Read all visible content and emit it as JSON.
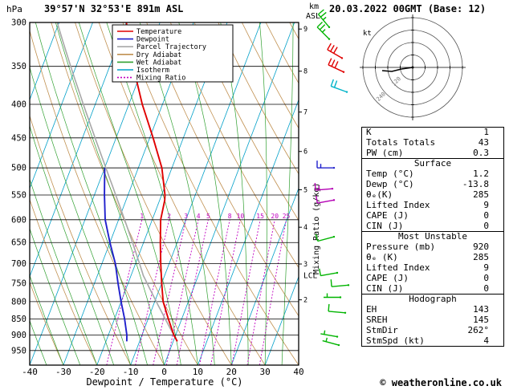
{
  "header": {
    "pressure_unit": "hPa",
    "station": "39°57'N 32°53'E 891m ASL",
    "altitude_unit_top": "km",
    "altitude_unit_bottom": "ASL",
    "datetime": "20.03.2022 00GMT (Base: 12)"
  },
  "legend": [
    {
      "label": "Temperature",
      "color": "#e00000",
      "style": "solid"
    },
    {
      "label": "Dewpoint",
      "color": "#2020cc",
      "style": "solid"
    },
    {
      "label": "Parcel Trajectory",
      "color": "#a8a8a8",
      "style": "solid"
    },
    {
      "label": "Dry Adiabat",
      "color": "#c09050",
      "style": "solid"
    },
    {
      "label": "Wet Adiabat",
      "color": "#30a030",
      "style": "solid"
    },
    {
      "label": "Isotherm",
      "color": "#00a0c8",
      "style": "solid"
    },
    {
      "label": "Mixing Ratio",
      "color": "#c000c0",
      "style": "dotted"
    }
  ],
  "axes": {
    "pressure_ticks": [
      300,
      350,
      400,
      450,
      500,
      550,
      600,
      650,
      700,
      750,
      800,
      850,
      900,
      950
    ],
    "temp_ticks": [
      -40,
      -30,
      -20,
      -10,
      0,
      10,
      20,
      30,
      40
    ],
    "xlabel": "Dewpoint / Temperature (°C)",
    "right_axis_label": "Mixing Ratio (g/kg)",
    "km_ticks": [
      2,
      3,
      4,
      5,
      6,
      7,
      8,
      9
    ],
    "lcl_label": "LCL"
  },
  "chart_data": {
    "type": "skewt-log-p",
    "pressure_range": [
      300,
      1000
    ],
    "temp_range": [
      -40,
      40
    ],
    "mixing_ratio_lines": [
      1,
      2,
      3,
      4,
      5,
      8,
      10,
      15,
      20,
      25
    ],
    "temperature_profile": [
      [
        920,
        1.2
      ],
      [
        900,
        -0.5
      ],
      [
        850,
        -4
      ],
      [
        800,
        -7.5
      ],
      [
        750,
        -10
      ],
      [
        700,
        -12.5
      ],
      [
        650,
        -15
      ],
      [
        600,
        -17.5
      ],
      [
        560,
        -18.5
      ],
      [
        550,
        -19
      ],
      [
        500,
        -23
      ],
      [
        450,
        -29
      ],
      [
        400,
        -36
      ],
      [
        350,
        -43
      ],
      [
        300,
        -50
      ]
    ],
    "dewpoint_profile": [
      [
        920,
        -13.8
      ],
      [
        900,
        -14.5
      ],
      [
        850,
        -17
      ],
      [
        800,
        -20
      ],
      [
        750,
        -23
      ],
      [
        700,
        -26
      ],
      [
        650,
        -30
      ],
      [
        600,
        -34
      ],
      [
        550,
        -37
      ],
      [
        500,
        -40
      ]
    ],
    "parcel": {
      "surface_p": 920,
      "surface_t": 1.2,
      "lcl_p": 730
    },
    "wind_barbs": [
      {
        "p": 305,
        "dir": 320,
        "spd": 25,
        "color": "#00b400",
        "xoff": -10
      },
      {
        "p": 318,
        "dir": 315,
        "spd": 25,
        "color": "#00b400",
        "xoff": -10
      },
      {
        "p": 340,
        "dir": 300,
        "spd": 30,
        "color": "#e00000",
        "xoff": 6
      },
      {
        "p": 357,
        "dir": 295,
        "spd": 30,
        "color": "#e00000",
        "xoff": 8
      },
      {
        "p": 383,
        "dir": 290,
        "spd": 20,
        "color": "#00b4c8",
        "xoff": 12
      },
      {
        "p": 500,
        "dir": 270,
        "spd": 15,
        "color": "#2020cc",
        "xoff": -4
      },
      {
        "p": 538,
        "dir": 265,
        "spd": 15,
        "color": "#b400b4",
        "xoff": -6
      },
      {
        "p": 560,
        "dir": 260,
        "spd": 10,
        "color": "#b400b4",
        "xoff": -4
      },
      {
        "p": 637,
        "dir": 255,
        "spd": 10,
        "color": "#00b400",
        "xoff": -4
      },
      {
        "p": 723,
        "dir": 260,
        "spd": 10,
        "color": "#00b400",
        "xoff": 0
      },
      {
        "p": 755,
        "dir": 265,
        "spd": 10,
        "color": "#00b400",
        "xoff": 14
      },
      {
        "p": 788,
        "dir": 270,
        "spd": 5,
        "color": "#00b400",
        "xoff": 4
      },
      {
        "p": 832,
        "dir": 275,
        "spd": 10,
        "color": "#00b400",
        "xoff": 10
      },
      {
        "p": 905,
        "dir": 280,
        "spd": 5,
        "color": "#00b400",
        "xoff": 0
      },
      {
        "p": 932,
        "dir": 285,
        "spd": 5,
        "color": "#00b400",
        "xoff": 2
      }
    ],
    "colors": {
      "temperature": "#e00000",
      "dewpoint": "#2020cc",
      "parcel": "#a8a8a8",
      "dry_adiabat": "#c09050",
      "wet_adiabat": "#30a030",
      "isotherm": "#00a0c8",
      "mixing_ratio": "#c000c0",
      "isobar": "#000000"
    }
  },
  "hodograph": {
    "unit": "kt",
    "ring_labels": [
      {
        "text": "120",
        "r": 33
      },
      {
        "text": "240",
        "r": 60
      }
    ],
    "trace": [
      [
        0,
        0
      ],
      [
        -14,
        2
      ],
      [
        -26,
        5
      ],
      [
        -38,
        4
      ]
    ]
  },
  "stats": {
    "rows_top": [
      {
        "label": "K",
        "value": "1"
      },
      {
        "label": "Totals Totals",
        "value": "43"
      },
      {
        "label": "PW (cm)",
        "value": "0.3"
      }
    ],
    "surface": {
      "title": "Surface",
      "rows": [
        [
          "Temp (°C)",
          "1.2"
        ],
        [
          "Dewp (°C)",
          "-13.8"
        ],
        [
          "θₑ(K)",
          "285"
        ],
        [
          "Lifted Index",
          "9"
        ],
        [
          "CAPE (J)",
          "0"
        ],
        [
          "CIN (J)",
          "0"
        ]
      ]
    },
    "most_unstable": {
      "title": "Most Unstable",
      "rows": [
        [
          "Pressure (mb)",
          "920"
        ],
        [
          "θₑ (K)",
          "285"
        ],
        [
          "Lifted Index",
          "9"
        ],
        [
          "CAPE (J)",
          "0"
        ],
        [
          "CIN (J)",
          "0"
        ]
      ]
    },
    "hodograph_sec": {
      "title": "Hodograph",
      "rows": [
        [
          "EH",
          "143"
        ],
        [
          "SREH",
          "145"
        ],
        [
          "StmDir",
          "262°"
        ],
        [
          "StmSpd (kt)",
          "4"
        ]
      ]
    }
  },
  "footer": {
    "copyright": "© weatheronline.co.uk"
  }
}
